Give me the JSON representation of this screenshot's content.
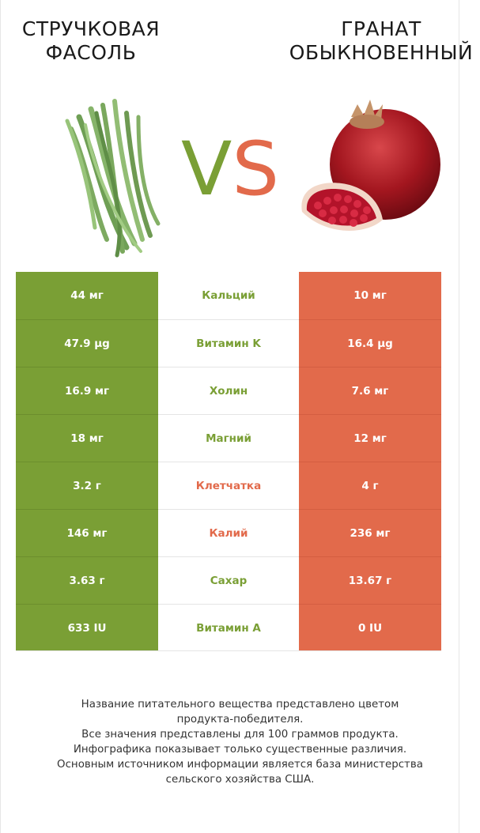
{
  "header": {
    "left_title": [
      "СТРУЧКОВАЯ",
      "ФАСОЛЬ"
    ],
    "right_title": [
      "ГРАНАТ",
      "ОБЫКНОВЕННЫЙ"
    ],
    "vs_left": "V",
    "vs_right": "S"
  },
  "colors": {
    "left_product": "#7a9f35",
    "right_product": "#e26a4b"
  },
  "images": {
    "left": "green-beans-image",
    "right": "pomegranate-image"
  },
  "comparison": [
    {
      "left": "44 мг",
      "nutrient": "Кальций",
      "right": "10 мг",
      "winner": "left"
    },
    {
      "left": "47.9 µg",
      "nutrient": "Витамин K",
      "right": "16.4 µg",
      "winner": "left"
    },
    {
      "left": "16.9 мг",
      "nutrient": "Холин",
      "right": "7.6 мг",
      "winner": "left"
    },
    {
      "left": "18 мг",
      "nutrient": "Магний",
      "right": "12 мг",
      "winner": "left"
    },
    {
      "left": "3.2 г",
      "nutrient": "Клетчатка",
      "right": "4 г",
      "winner": "right"
    },
    {
      "left": "146 мг",
      "nutrient": "Калий",
      "right": "236 мг",
      "winner": "right"
    },
    {
      "left": "3.63 г",
      "nutrient": "Сахар",
      "right": "13.67 г",
      "winner": "left"
    },
    {
      "left": "633 IU",
      "nutrient": "Витамин A",
      "right": "0 IU",
      "winner": "left"
    }
  ],
  "footnote": [
    "Название питательного вещества представлено цветом",
    "продукта-победителя.",
    "Все значения представлены для 100 граммов продукта.",
    "Инфографика показывает только существенные различия.",
    "Основным источником информации является база министерства",
    "сельского хозяйства США."
  ]
}
